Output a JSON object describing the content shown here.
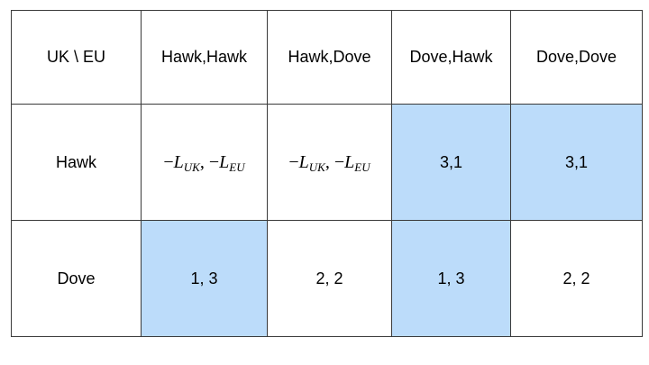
{
  "table": {
    "corner": "UK \\ EU",
    "columns": [
      "Hawk,Hawk",
      "Hawk,Dove",
      "Dove,Hawk",
      "Dove,Dove"
    ],
    "rows": [
      {
        "label": "Hawk",
        "cells": [
          {
            "math": {
              "minus": "−",
              "var": "L",
              "sub1": "UK",
              "comma": ",",
              "minus2": "−",
              "var2": "L",
              "sub2": "EU"
            }
          },
          {
            "math": {
              "minus": "−",
              "var": "L",
              "sub1": "UK",
              "comma": ",",
              "minus2": "−",
              "var2": "L",
              "sub2": "EU"
            }
          },
          {
            "text": "3,1",
            "shaded": true
          },
          {
            "text": "3,1",
            "shaded": true
          }
        ]
      },
      {
        "label": "Dove",
        "cells": [
          {
            "text": "1, 3",
            "shaded": true
          },
          {
            "text": "2, 2",
            "shaded": false
          },
          {
            "text": "1, 3",
            "shaded": true
          },
          {
            "text": "2, 2",
            "shaded": false
          }
        ]
      }
    ],
    "shade_color": "#bcdcfa"
  }
}
